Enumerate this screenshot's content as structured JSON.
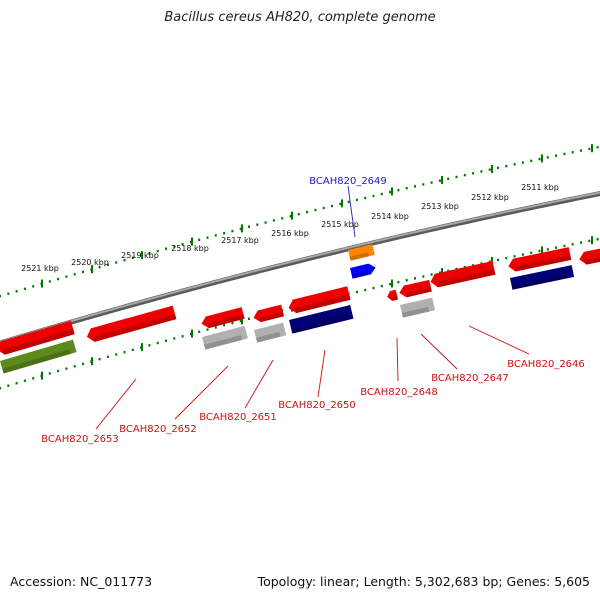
{
  "title": "Bacillus cereus AH820, complete genome",
  "footer": {
    "accession": "Accession: NC_011773",
    "stats": "Topology: linear; Length: 5,302,683 bp; Genes: 5,605"
  },
  "scale_labels": [
    "2521 kbp",
    "2520 kbp",
    "2519 kbp",
    "2518 kbp",
    "2517 kbp",
    "2516 kbp",
    "2515 kbp",
    "2514 kbp",
    "2513 kbp",
    "2512 kbp",
    "2511 kbp"
  ],
  "gene_labels": [
    {
      "text": "BCAH820_2649",
      "color": "#1a1acc"
    },
    {
      "text": "BCAH820_2653",
      "color": "#cc1111"
    },
    {
      "text": "BCAH820_2652",
      "color": "#cc1111"
    },
    {
      "text": "BCAH820_2651",
      "color": "#cc1111"
    },
    {
      "text": "BCAH820_2650",
      "color": "#cc1111"
    },
    {
      "text": "BCAH820_2648",
      "color": "#cc1111"
    },
    {
      "text": "BCAH820_2647",
      "color": "#cc1111"
    },
    {
      "text": "BCAH820_2646",
      "color": "#cc1111"
    }
  ],
  "colors": {
    "forward_red": "#ee0000",
    "grey": "#b0b0b0",
    "navy": "#000077",
    "olive": "#5c8a1c",
    "orange": "#ff8800",
    "blue": "#0000ff",
    "tick_green": "#007700",
    "backbone": "#7a7a7a"
  }
}
